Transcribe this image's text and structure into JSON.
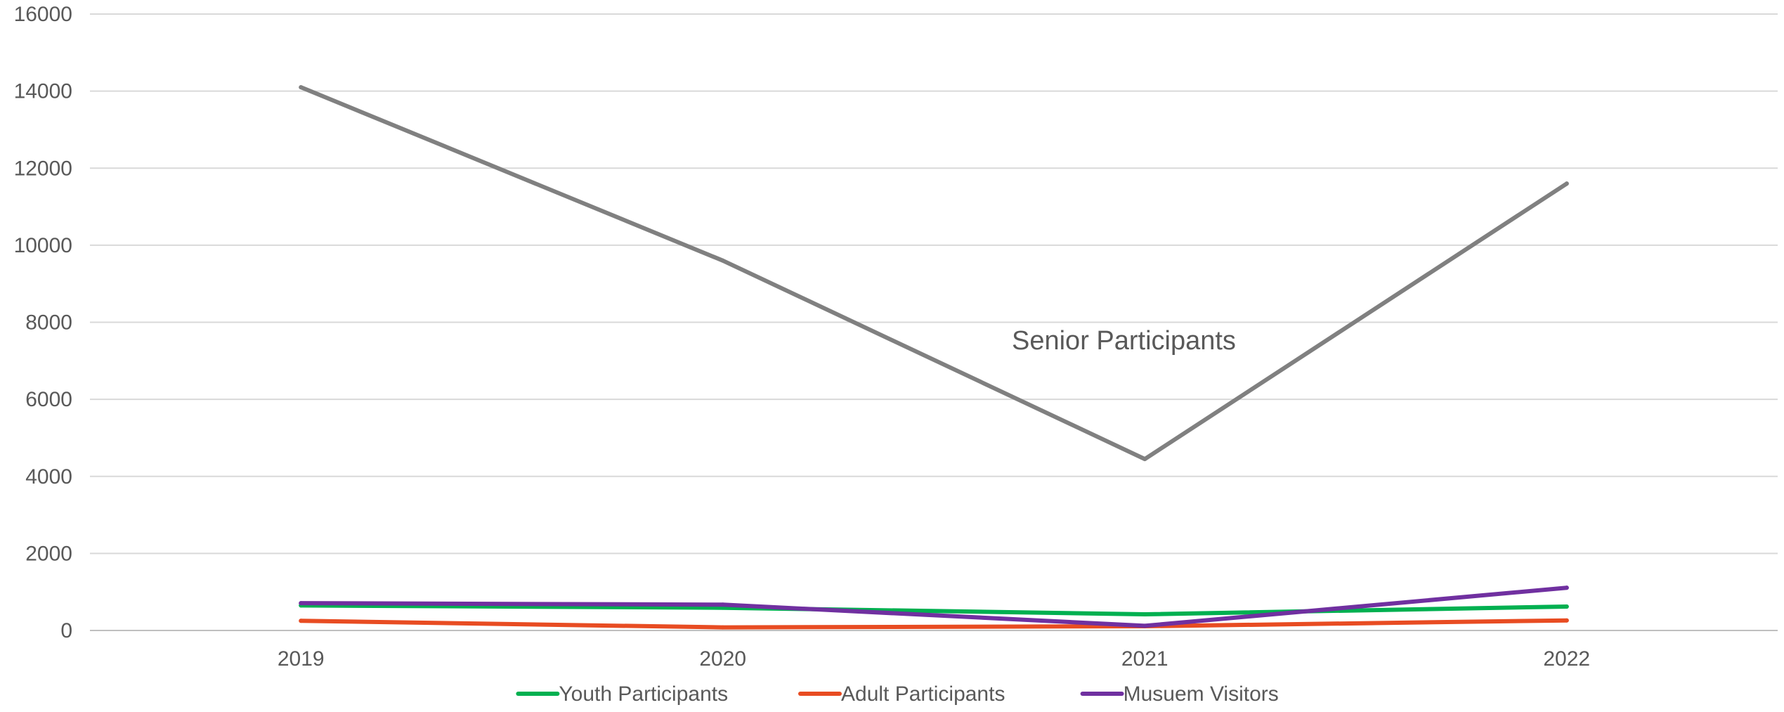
{
  "chart_data": {
    "type": "line",
    "title": "",
    "xlabel": "",
    "ylabel": "",
    "categories": [
      "2019",
      "2020",
      "2021",
      "2022"
    ],
    "ylim": [
      0,
      16000
    ],
    "yticks": [
      "0",
      "2000",
      "4000",
      "6000",
      "8000",
      "10000",
      "12000",
      "14000",
      "16000"
    ],
    "grid": "horizontal",
    "legend": "bottom",
    "annotations": [
      {
        "text": "Senior Participants",
        "series": "Senior Participants"
      }
    ],
    "series": [
      {
        "name": "Senior Participants",
        "color": "#808080",
        "values": [
          14100,
          9600,
          4450,
          11600
        ],
        "in_legend": false
      },
      {
        "name": "Youth Participants",
        "color": "#00b050",
        "values": [
          650,
          590,
          420,
          620
        ],
        "in_legend": true
      },
      {
        "name": "Adult Participants",
        "color": "#e84c22",
        "values": [
          250,
          80,
          110,
          260
        ],
        "in_legend": true
      },
      {
        "name": "Musuem Visitors",
        "color": "#7030a0",
        "values": [
          710,
          670,
          120,
          1110
        ],
        "in_legend": true
      }
    ]
  }
}
